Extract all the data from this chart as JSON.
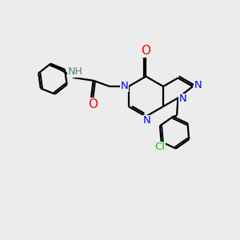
{
  "background_color": "#ececec",
  "bond_color": "#000000",
  "line_width": 1.6,
  "atom_colors": {
    "N": "#0000ff",
    "O": "#ff0000",
    "Cl": "#00cc00",
    "H": "#4a8a8a",
    "C": "#000000"
  },
  "font_size": 9.5
}
